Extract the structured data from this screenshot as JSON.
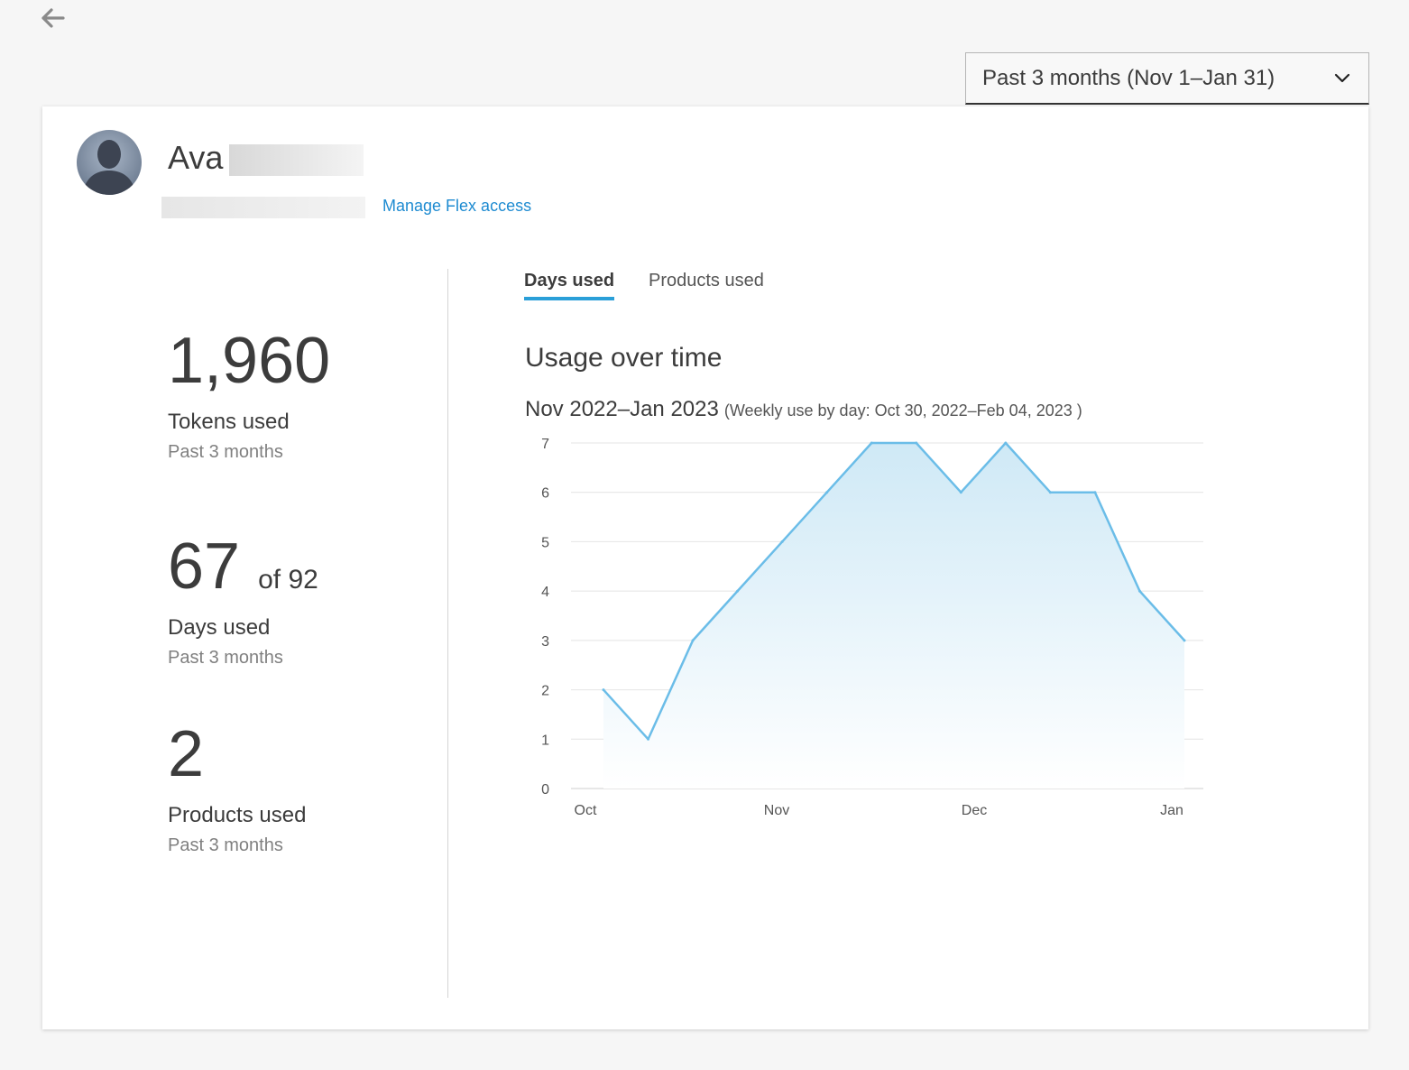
{
  "header": {
    "back_icon": "arrow-left-icon",
    "period_select": {
      "value": "Past 3 months (Nov 1–Jan 31)",
      "icon": "chevron-down-icon"
    }
  },
  "user": {
    "first_name": "Ava",
    "avatar_icon": "person-silhouette-icon",
    "manage_link": "Manage Flex access"
  },
  "stats": {
    "tokens": {
      "value": "1,960",
      "label": "Tokens used",
      "sub": "Past 3 months"
    },
    "days": {
      "value": "67",
      "of": "of 92",
      "label": "Days used",
      "sub": "Past 3 months"
    },
    "products": {
      "value": "2",
      "label": "Products used",
      "sub": "Past 3 months"
    }
  },
  "tabs": [
    {
      "label": "Days used",
      "active": true
    },
    {
      "label": "Products used",
      "active": false
    }
  ],
  "chart": {
    "title": "Usage over time",
    "subtitle": "Nov 2022–Jan 2023",
    "range": "(Weekly use by day: Oct 30, 2022–Feb 04, 2023 )"
  },
  "chart_data": {
    "type": "area",
    "x": [
      "Oct 30",
      "Nov 6",
      "Nov 13",
      "Nov 20",
      "Nov 27",
      "Dec 4",
      "Dec 11",
      "Dec 18",
      "Dec 25",
      "Jan 1",
      "Jan 8",
      "Jan 15",
      "Jan 22",
      "Jan 29"
    ],
    "values": [
      2,
      1,
      3,
      4,
      5,
      6,
      7,
      7,
      6,
      7,
      6,
      6,
      4,
      3
    ],
    "x_ticks": [
      "Oct",
      "Nov",
      "Dec",
      "Jan"
    ],
    "y_ticks": [
      0,
      1,
      2,
      3,
      4,
      5,
      6,
      7
    ],
    "ylim": [
      0,
      7
    ],
    "grid": true,
    "colors": {
      "line": "#6bbde8",
      "fill_top": "#cfe9f6",
      "fill_bottom": "#ffffff"
    }
  }
}
